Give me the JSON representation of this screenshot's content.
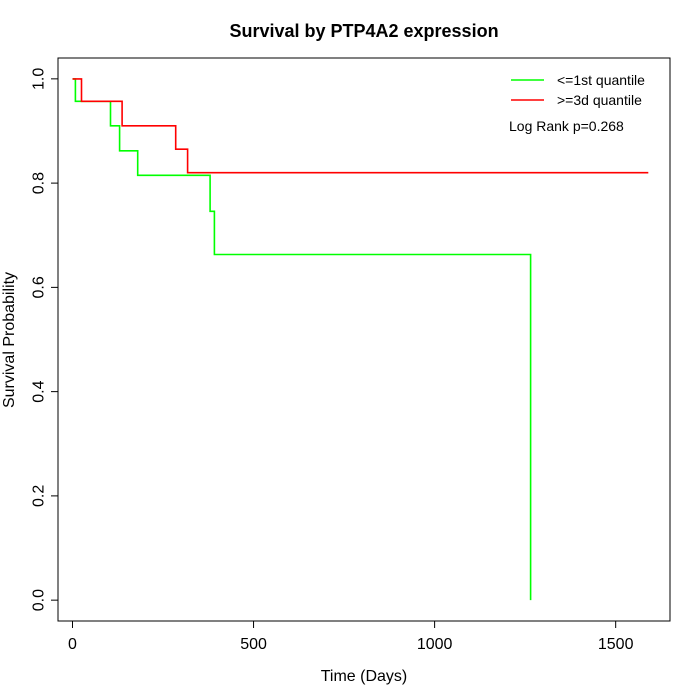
{
  "chart_data": {
    "type": "line",
    "title": "Survival by PTP4A2 expression",
    "xlabel": "Time (Days)",
    "ylabel": "Survival Probability",
    "xlim": [
      -40,
      1650
    ],
    "ylim": [
      -0.04,
      1.04
    ],
    "xticks": [
      0,
      500,
      1000,
      1500
    ],
    "xtick_labels": [
      "0",
      "500",
      "1000",
      "1500"
    ],
    "yticks": [
      0.0,
      0.2,
      0.4,
      0.6,
      0.8,
      1.0
    ],
    "ytick_labels": [
      "0.0",
      "0.2",
      "0.4",
      "0.6",
      "0.8",
      "1.0"
    ],
    "legend_position": "top-right",
    "annotation": "Log Rank p=0.268",
    "series": [
      {
        "name": "<=1st quantile",
        "color": "#00ff00",
        "step": true,
        "x": [
          0,
          8,
          8,
          105,
          105,
          130,
          130,
          180,
          180,
          380,
          380,
          392,
          392,
          1265,
          1265
        ],
        "y": [
          1.0,
          1.0,
          0.957,
          0.957,
          0.91,
          0.91,
          0.862,
          0.862,
          0.815,
          0.815,
          0.746,
          0.746,
          0.663,
          0.663,
          0.0
        ]
      },
      {
        "name": ">=3d quantile",
        "color": "#ff0000",
        "step": true,
        "x": [
          0,
          25,
          25,
          137,
          137,
          285,
          285,
          318,
          318,
          1590
        ],
        "y": [
          1.0,
          1.0,
          0.957,
          0.957,
          0.91,
          0.91,
          0.865,
          0.865,
          0.82,
          0.82
        ]
      }
    ]
  }
}
